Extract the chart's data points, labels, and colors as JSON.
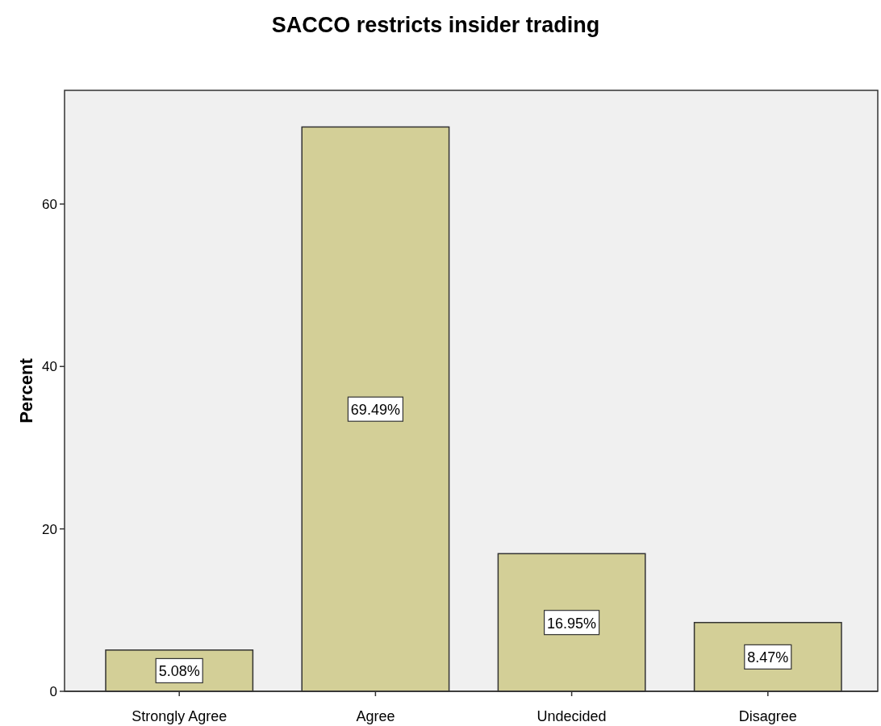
{
  "chart_data": {
    "type": "bar",
    "title": "SACCO restricts insider trading",
    "ylabel": "Percent",
    "categories": [
      "Strongly Agree",
      "Agree",
      "Undecided",
      "Disagree"
    ],
    "values": [
      5.08,
      69.49,
      16.95,
      8.47
    ],
    "value_labels": [
      "5.08%",
      "69.49%",
      "16.95%",
      "8.47%"
    ],
    "color": "#d3cf97",
    "ylim": [
      0,
      74
    ],
    "yticks": [
      0,
      20,
      40,
      60
    ],
    "grid": false
  }
}
